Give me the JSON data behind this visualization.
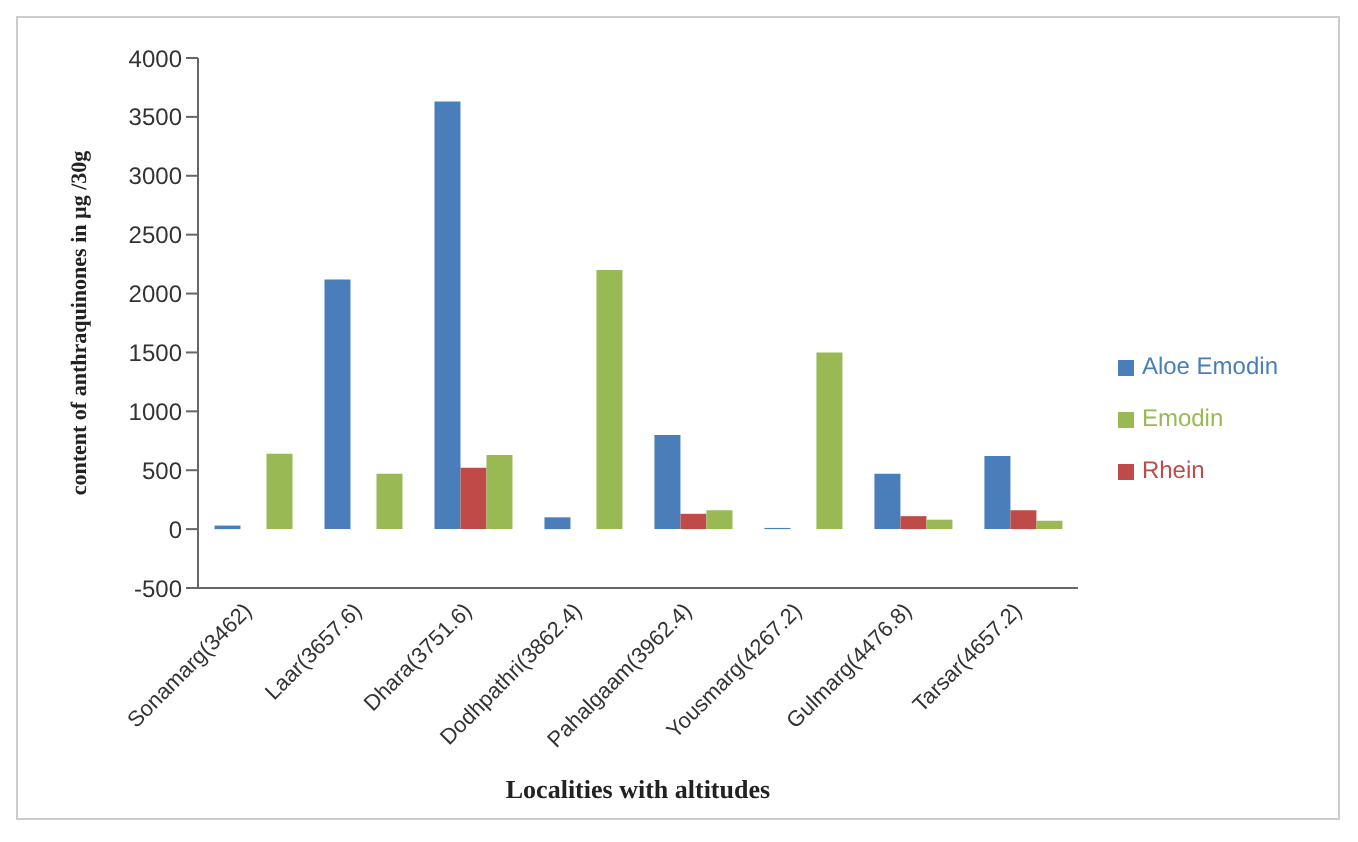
{
  "chart_data": {
    "type": "bar",
    "xlabel": "Localities with altitudes",
    "ylabel": "content of anthraquinones in µg /30g",
    "categories": [
      "Sonamarg(3462)",
      "Laar(3657.6)",
      "Dhara(3751.6)",
      "Dodhpathri(3862.4)",
      "Pahalgaam(3962.4)",
      "Yousmarg(4267.2)",
      "Gulmarg(4476.8)",
      "Tarsar(4657.2)"
    ],
    "series": [
      {
        "name": "Aloe Emodin",
        "color": "#4a7ebb",
        "values": [
          30,
          2120,
          3630,
          100,
          800,
          10,
          470,
          620
        ]
      },
      {
        "name": "Rhein",
        "color": "#be4b48",
        "values": [
          0,
          0,
          520,
          0,
          130,
          0,
          110,
          160
        ]
      },
      {
        "name": "Emodin",
        "color": "#98b954",
        "values": [
          640,
          470,
          630,
          2200,
          160,
          1500,
          80,
          70
        ]
      }
    ],
    "ylim": [
      -500,
      4000
    ],
    "yticks": [
      -500,
      0,
      500,
      1000,
      1500,
      2000,
      2500,
      3000,
      3500,
      4000
    ],
    "grid": false,
    "legend": "right"
  }
}
